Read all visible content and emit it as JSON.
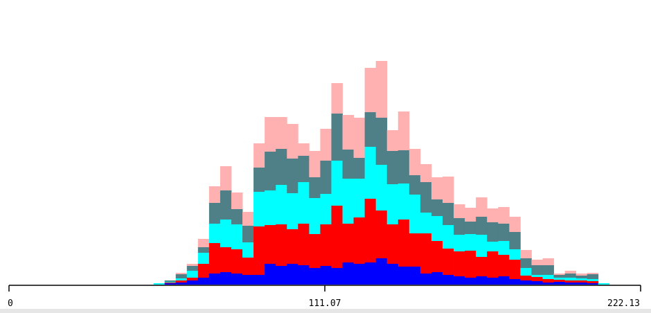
{
  "chart_data": {
    "type": "bar",
    "stacked": true,
    "title": "",
    "xlabel": "",
    "ylabel": "",
    "xlim": [
      0,
      222.13
    ],
    "ylim": [
      0,
      380
    ],
    "grid": false,
    "x_tick_labels": [
      "0",
      "111.07",
      "222.13"
    ],
    "x_tick_values": [
      0,
      111.07,
      222.13
    ],
    "bin_width": 3.91,
    "bins_start": [
      50.81,
      54.72,
      58.63,
      62.54,
      66.45,
      70.36,
      74.27,
      78.18,
      82.09,
      86.0,
      89.91,
      93.82,
      97.73,
      101.64,
      105.55,
      109.46,
      113.37,
      117.28,
      121.19,
      125.1,
      129.01,
      132.92,
      136.83,
      140.74,
      144.65,
      148.56,
      152.47,
      156.38,
      160.29,
      164.2,
      168.11,
      172.02,
      175.93,
      179.84,
      183.75,
      187.66,
      191.57,
      195.48,
      199.39,
      203.3,
      207.21
    ],
    "series": [
      {
        "color": "#0000ff",
        "values": [
          0,
          2,
          3,
          6,
          10,
          16,
          18,
          16,
          14,
          14,
          30,
          27,
          30,
          28,
          24,
          27,
          24,
          32,
          30,
          32,
          38,
          30,
          26,
          26,
          16,
          18,
          14,
          12,
          10,
          12,
          10,
          12,
          8,
          6,
          5,
          3,
          4,
          3,
          3,
          2,
          0
        ]
      },
      {
        "color": "#ff0000",
        "values": [
          0,
          1,
          3,
          4,
          20,
          44,
          36,
          35,
          25,
          70,
          56,
          60,
          50,
          60,
          49,
          60,
          90,
          56,
          67,
          92,
          69,
          57,
          68,
          48,
          58,
          45,
          38,
          36,
          39,
          28,
          38,
          31,
          28,
          7,
          6,
          5,
          3,
          3,
          3,
          3,
          0
        ]
      },
      {
        "color": "#00ffff",
        "values": [
          2,
          1,
          3,
          10,
          16,
          28,
          40,
          36,
          22,
          50,
          50,
          57,
          52,
          60,
          52,
          44,
          65,
          65,
          56,
          75,
          66,
          58,
          52,
          56,
          30,
          36,
          34,
          24,
          24,
          32,
          14,
          20,
          15,
          11,
          3,
          6,
          3,
          4,
          3,
          3,
          2
        ]
      },
      {
        "color": "#4f7f87",
        "values": [
          0,
          2,
          6,
          7,
          8,
          30,
          42,
          22,
          24,
          35,
          56,
          52,
          50,
          38,
          30,
          48,
          68,
          42,
          30,
          50,
          68,
          48,
          48,
          28,
          44,
          24,
          32,
          24,
          18,
          26,
          28,
          25,
          25,
          14,
          14,
          14,
          4,
          6,
          4,
          7,
          0
        ]
      },
      {
        "color": "#ffb0b0",
        "values": [
          0,
          0,
          2,
          3,
          12,
          24,
          35,
          24,
          20,
          35,
          50,
          46,
          50,
          18,
          38,
          46,
          44,
          50,
          58,
          64,
          82,
          30,
          56,
          38,
          26,
          32,
          38,
          20,
          20,
          28,
          20,
          24,
          22,
          12,
          8,
          10,
          2,
          4,
          3,
          2,
          0
        ]
      }
    ]
  }
}
